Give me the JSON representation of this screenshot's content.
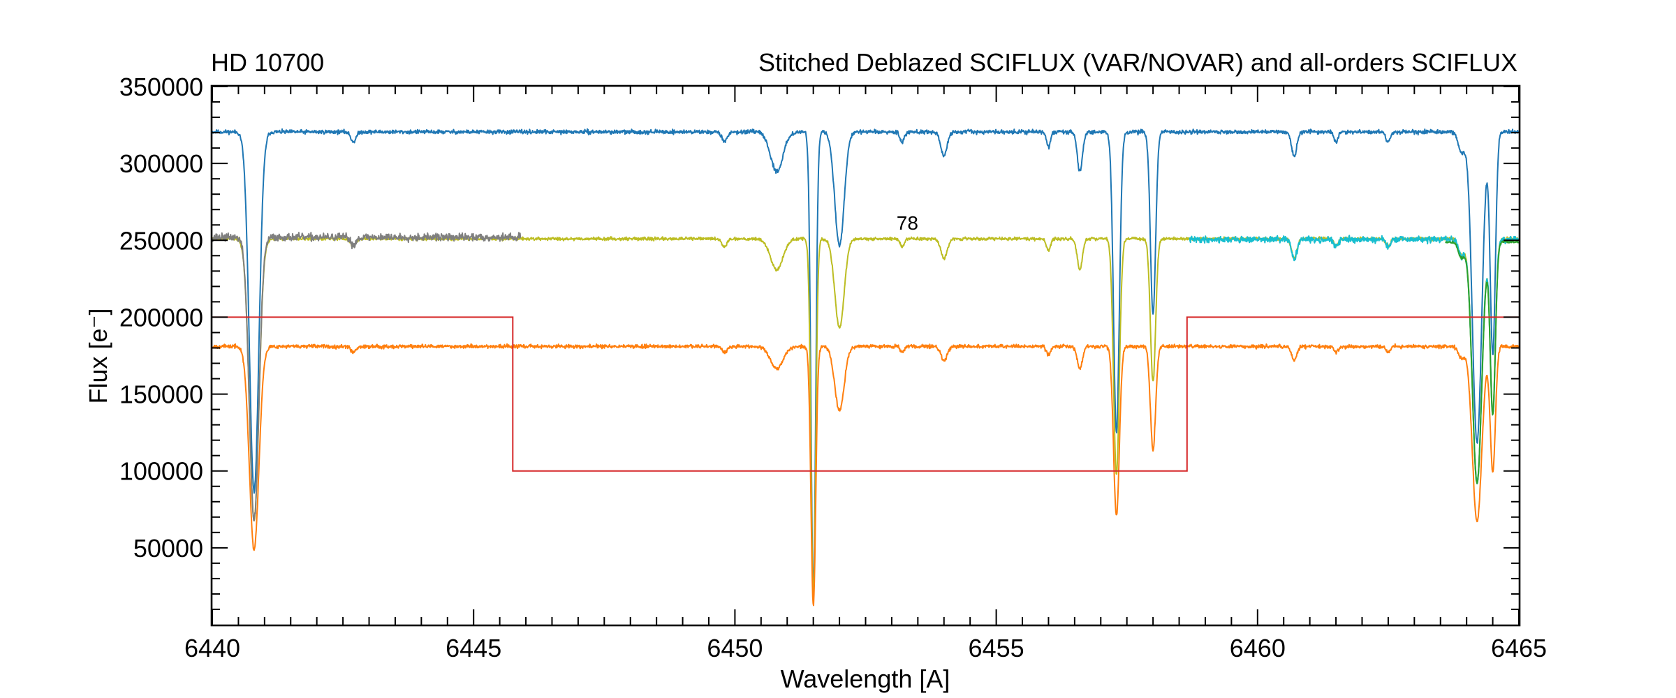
{
  "chart_data": {
    "type": "line",
    "title_left": "HD 10700",
    "title_right": "Stitched Deblazed SCIFLUX (VAR/NOVAR) and all-orders SCIFLUX",
    "xlabel": "Wavelength [A]",
    "ylabel": "Flux [e⁻]",
    "xlim": [
      6440,
      6465
    ],
    "ylim": [
      0,
      350000
    ],
    "xticks": [
      6440,
      6445,
      6450,
      6455,
      6460,
      6465
    ],
    "yticks": [
      50000,
      100000,
      150000,
      200000,
      250000,
      300000,
      350000
    ],
    "xtick_labels": [
      "6440",
      "6445",
      "6450",
      "6455",
      "6460",
      "6465"
    ],
    "ytick_labels": [
      "50000",
      "100000",
      "150000",
      "200000",
      "250000",
      "300000",
      "350000"
    ],
    "annotations": [
      {
        "text": "78",
        "x": 6453.3,
        "y": 257000
      }
    ],
    "lines": [
      {
        "id": "6440.8",
        "w": 6440.8,
        "d": 0.73,
        "s": 0.09
      },
      {
        "id": "6442.7",
        "w": 6442.7,
        "d": 0.02,
        "s": 0.05
      },
      {
        "id": "6449.8",
        "w": 6449.8,
        "d": 0.02,
        "s": 0.05
      },
      {
        "id": "6450.8",
        "w": 6450.8,
        "d": 0.08,
        "s": 0.12
      },
      {
        "id": "6451.5",
        "w": 6451.5,
        "d": 0.93,
        "s": 0.045
      },
      {
        "id": "6452.0",
        "w": 6452.0,
        "d": 0.23,
        "s": 0.09
      },
      {
        "id": "6453.2",
        "w": 6453.2,
        "d": 0.02,
        "s": 0.04
      },
      {
        "id": "6454.0",
        "w": 6454.0,
        "d": 0.05,
        "s": 0.06
      },
      {
        "id": "6456.0",
        "w": 6456.0,
        "d": 0.03,
        "s": 0.04
      },
      {
        "id": "6456.6",
        "w": 6456.6,
        "d": 0.08,
        "s": 0.05
      },
      {
        "id": "6457.3",
        "w": 6457.3,
        "d": 0.61,
        "s": 0.055
      },
      {
        "id": "6458.0",
        "w": 6458.0,
        "d": 0.37,
        "s": 0.05
      },
      {
        "id": "6460.7",
        "w": 6460.7,
        "d": 0.05,
        "s": 0.05
      },
      {
        "id": "6461.5",
        "w": 6461.5,
        "d": 0.02,
        "s": 0.04
      },
      {
        "id": "6462.5",
        "w": 6462.5,
        "d": 0.02,
        "s": 0.04
      },
      {
        "id": "6463.9",
        "w": 6463.9,
        "d": 0.04,
        "s": 0.06
      },
      {
        "id": "6464.2",
        "w": 6464.2,
        "d": 0.63,
        "s": 0.09
      },
      {
        "id": "6464.5",
        "w": 6464.5,
        "d": 0.45,
        "s": 0.05
      }
    ],
    "series": [
      {
        "color": "#1f77b4",
        "continuum": 320500,
        "x_start": 6440,
        "x_end": 6465,
        "noise": 1300,
        "seed": 11
      },
      {
        "color": "#bcbd22",
        "continuum": 251000,
        "x_start": 6440,
        "x_end": 6465,
        "noise": 1000,
        "seed": 23
      },
      {
        "color": "#7f7f7f",
        "continuum": 252000,
        "x_start": 6440,
        "x_end": 6445.9,
        "noise": 2400,
        "seed": 37
      },
      {
        "color": "#17becf",
        "continuum": 250500,
        "x_start": 6458.7,
        "x_end": 6465,
        "noise": 2000,
        "seed": 41
      },
      {
        "color": "#2ca02c",
        "continuum": 249000,
        "x_start": 6463.6,
        "x_end": 6465,
        "noise": 800,
        "seed": 53
      },
      {
        "color": "#ff7f0e",
        "continuum": 181000,
        "x_start": 6440,
        "x_end": 6465,
        "noise": 1200,
        "seed": 67
      }
    ],
    "step_series": {
      "color": "#d62728",
      "x": [
        6440,
        6445.75,
        6445.75,
        6458.65,
        6458.65,
        6465
      ],
      "y": [
        200000,
        200000,
        100000,
        100000,
        200000,
        200000
      ]
    }
  }
}
